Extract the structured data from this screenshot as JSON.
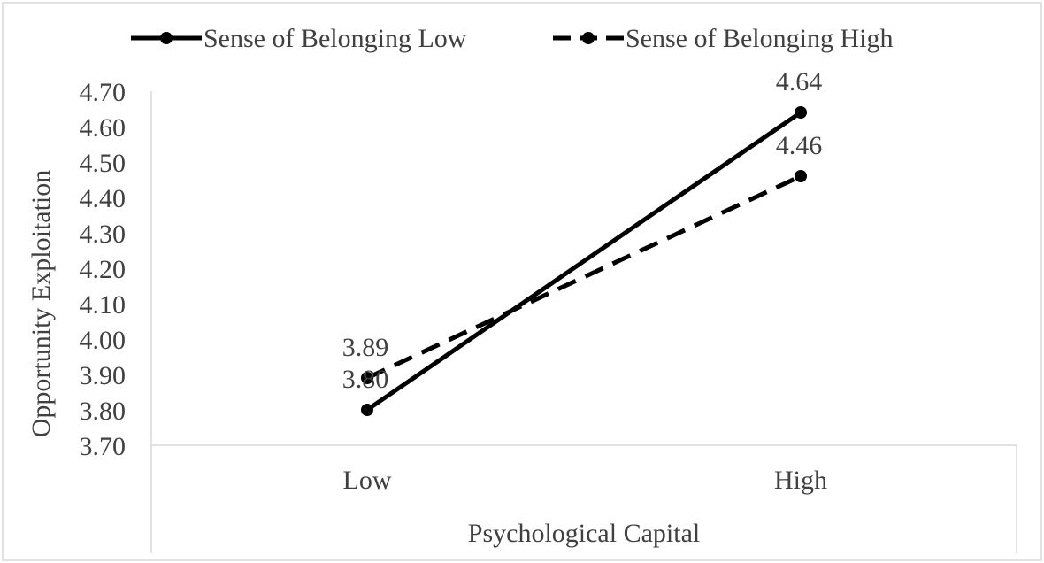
{
  "chart_data": {
    "type": "line",
    "title": "",
    "xlabel": "Psychological Capital",
    "ylabel": "Opportunity Exploitation",
    "categories": [
      "Low",
      "High"
    ],
    "ylim": [
      3.7,
      4.7
    ],
    "yticks": [
      "3.70",
      "3.80",
      "3.90",
      "4.00",
      "4.10",
      "4.20",
      "4.30",
      "4.40",
      "4.50",
      "4.60",
      "4.70"
    ],
    "grid": false,
    "legend": "top",
    "series": [
      {
        "name": "Sense of Belonging Low",
        "values": [
          3.8,
          4.64
        ],
        "labels": [
          "3.80",
          "4.64"
        ],
        "line_style": "solid",
        "color": "#000000"
      },
      {
        "name": "Sense of Belonging High",
        "values": [
          3.89,
          4.46
        ],
        "labels": [
          "3.89",
          "4.46"
        ],
        "line_style": "dashed",
        "color": "#000000"
      }
    ]
  }
}
